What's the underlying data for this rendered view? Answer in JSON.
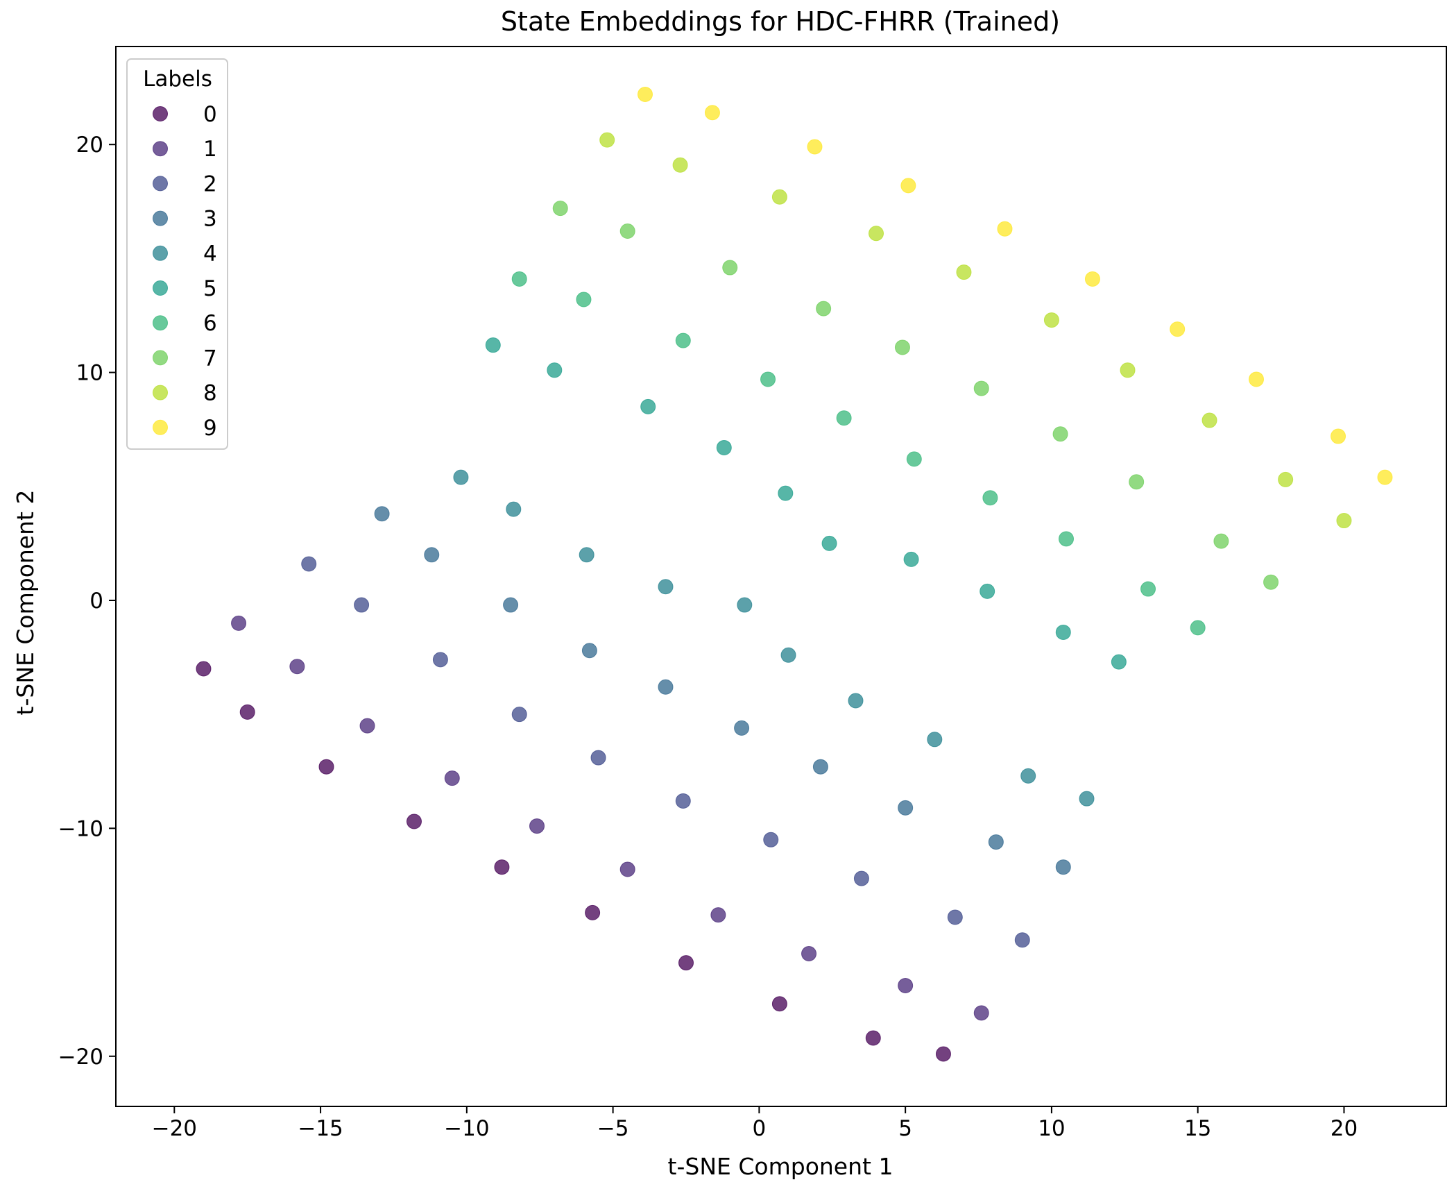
{
  "chart_data": {
    "type": "scatter",
    "title": "State Embeddings for HDC-FHRR (Trained)",
    "xlabel": "t-SNE Component 1",
    "ylabel": "t-SNE Component 2",
    "xlim": [
      -22,
      23.5
    ],
    "ylim": [
      -22.2,
      24.3
    ],
    "xticks": [
      -20,
      -15,
      -10,
      -5,
      0,
      5,
      10,
      15,
      20
    ],
    "xtick_labels": [
      "−20",
      "−15",
      "−10",
      "−5",
      "0",
      "5",
      "10",
      "15",
      "20"
    ],
    "yticks": [
      -20,
      -10,
      0,
      10,
      20
    ],
    "ytick_labels": [
      "−20",
      "−10",
      "0",
      "10",
      "20"
    ],
    "grid": false,
    "legend": {
      "title": "Labels",
      "placement": "top-left"
    },
    "marker_alpha": 0.75,
    "series": [
      {
        "name": "0",
        "color": "#440154",
        "points": [
          [
            -19.0,
            -3.0
          ],
          [
            -17.5,
            -4.9
          ],
          [
            -14.8,
            -7.3
          ],
          [
            -11.8,
            -9.7
          ],
          [
            -8.8,
            -11.7
          ],
          [
            -5.7,
            -13.7
          ],
          [
            -2.5,
            -15.9
          ],
          [
            0.7,
            -17.7
          ],
          [
            3.9,
            -19.2
          ],
          [
            6.3,
            -19.9
          ]
        ]
      },
      {
        "name": "1",
        "color": "#482878",
        "points": [
          [
            -17.8,
            -1.0
          ],
          [
            -15.8,
            -2.9
          ],
          [
            -13.4,
            -5.5
          ],
          [
            -10.5,
            -7.8
          ],
          [
            -7.6,
            -9.9
          ],
          [
            -4.5,
            -11.8
          ],
          [
            -1.4,
            -13.8
          ],
          [
            1.7,
            -15.5
          ],
          [
            5.0,
            -16.9
          ],
          [
            7.6,
            -18.1
          ]
        ]
      },
      {
        "name": "2",
        "color": "#3e4989",
        "points": [
          [
            -15.4,
            1.6
          ],
          [
            -13.6,
            -0.2
          ],
          [
            -10.9,
            -2.6
          ],
          [
            -8.2,
            -5.0
          ],
          [
            -5.5,
            -6.9
          ],
          [
            -2.6,
            -8.8
          ],
          [
            0.4,
            -10.5
          ],
          [
            3.5,
            -12.2
          ],
          [
            6.7,
            -13.9
          ],
          [
            9.0,
            -14.9
          ]
        ]
      },
      {
        "name": "3",
        "color": "#31688e",
        "points": [
          [
            -12.9,
            3.8
          ],
          [
            -11.2,
            2.0
          ],
          [
            -8.5,
            -0.2
          ],
          [
            -5.8,
            -2.2
          ],
          [
            -3.2,
            -3.8
          ],
          [
            -0.6,
            -5.6
          ],
          [
            2.1,
            -7.3
          ],
          [
            5.0,
            -9.1
          ],
          [
            8.1,
            -10.6
          ],
          [
            10.4,
            -11.7
          ]
        ]
      },
      {
        "name": "4",
        "color": "#26828e",
        "points": [
          [
            -10.2,
            5.4
          ],
          [
            -8.4,
            4.0
          ],
          [
            -5.9,
            2.0
          ],
          [
            -3.2,
            0.6
          ],
          [
            -0.5,
            -0.2
          ],
          [
            1.0,
            -2.4
          ],
          [
            3.3,
            -4.4
          ],
          [
            6.0,
            -6.1
          ],
          [
            9.2,
            -7.7
          ],
          [
            11.2,
            -8.7
          ]
        ]
      },
      {
        "name": "5",
        "color": "#1f9e89",
        "points": [
          [
            -9.1,
            11.2
          ],
          [
            -7.0,
            10.1
          ],
          [
            -3.8,
            8.5
          ],
          [
            -1.2,
            6.7
          ],
          [
            0.9,
            4.7
          ],
          [
            2.4,
            2.5
          ],
          [
            5.2,
            1.8
          ],
          [
            7.8,
            0.4
          ],
          [
            10.4,
            -1.4
          ],
          [
            12.3,
            -2.7
          ]
        ]
      },
      {
        "name": "6",
        "color": "#35b779",
        "points": [
          [
            -8.2,
            14.1
          ],
          [
            -6.0,
            13.2
          ],
          [
            -2.6,
            11.4
          ],
          [
            0.3,
            9.7
          ],
          [
            2.9,
            8.0
          ],
          [
            5.3,
            6.2
          ],
          [
            7.9,
            4.5
          ],
          [
            10.5,
            2.7
          ],
          [
            13.3,
            0.5
          ],
          [
            15.0,
            -1.2
          ]
        ]
      },
      {
        "name": "7",
        "color": "#6ece58",
        "points": [
          [
            -6.8,
            17.2
          ],
          [
            -4.5,
            16.2
          ],
          [
            -1.0,
            14.6
          ],
          [
            2.2,
            12.8
          ],
          [
            4.9,
            11.1
          ],
          [
            7.6,
            9.3
          ],
          [
            10.3,
            7.3
          ],
          [
            12.9,
            5.2
          ],
          [
            15.8,
            2.6
          ],
          [
            17.5,
            0.8
          ]
        ]
      },
      {
        "name": "8",
        "color": "#b5de2b",
        "points": [
          [
            -5.2,
            20.2
          ],
          [
            -2.7,
            19.1
          ],
          [
            0.7,
            17.7
          ],
          [
            4.0,
            16.1
          ],
          [
            7.0,
            14.4
          ],
          [
            10.0,
            12.3
          ],
          [
            12.6,
            10.1
          ],
          [
            15.4,
            7.9
          ],
          [
            18.0,
            5.3
          ],
          [
            20.0,
            3.5
          ]
        ]
      },
      {
        "name": "9",
        "color": "#fde725",
        "points": [
          [
            -3.9,
            22.2
          ],
          [
            -1.6,
            21.4
          ],
          [
            1.9,
            19.9
          ],
          [
            5.1,
            18.2
          ],
          [
            8.4,
            16.3
          ],
          [
            11.4,
            14.1
          ],
          [
            14.3,
            11.9
          ],
          [
            17.0,
            9.7
          ],
          [
            19.8,
            7.2
          ],
          [
            21.4,
            5.4
          ]
        ]
      }
    ]
  }
}
